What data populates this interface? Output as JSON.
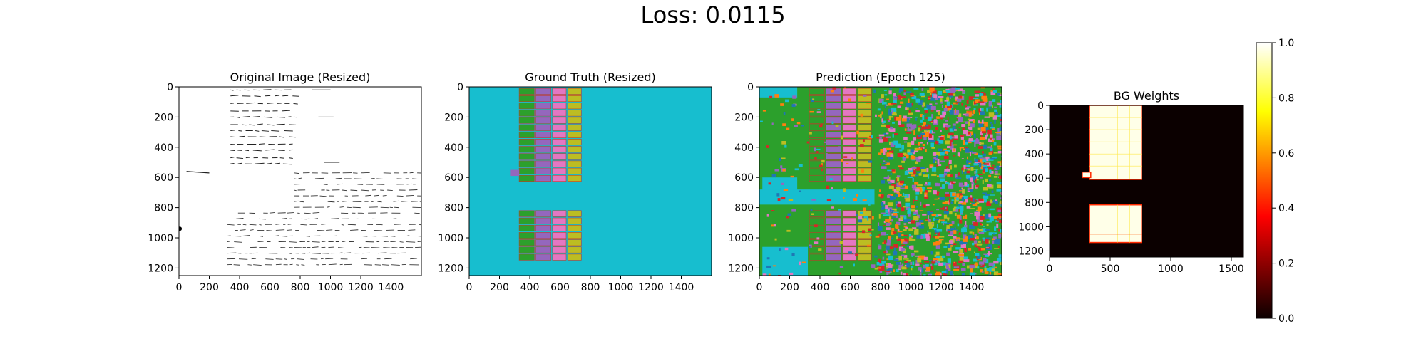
{
  "figure": {
    "suptitle": "Loss: 0.0115"
  },
  "chart_data": [
    {
      "type": "heatmap",
      "title": "Original Image (Resized)",
      "xticks": [
        0,
        200,
        400,
        600,
        800,
        1000,
        1200,
        1400
      ],
      "yticks": [
        0,
        200,
        400,
        600,
        800,
        1000,
        1200
      ],
      "xlim": [
        0,
        1600
      ],
      "ylim": [
        1250,
        0
      ],
      "content": "handwritten ledger page"
    },
    {
      "type": "heatmap",
      "title": "Ground Truth (Resized)",
      "xticks": [
        0,
        200,
        400,
        600,
        800,
        1000,
        1200,
        1400
      ],
      "yticks": [
        0,
        200,
        400,
        600,
        800,
        1000,
        1200
      ],
      "xlim": [
        0,
        1600
      ],
      "ylim": [
        1250,
        0
      ],
      "colors": {
        "background": "#17becf",
        "col1": "#2ca02c",
        "col2": "#9467bd",
        "col3": "#e377c2",
        "col4": "#bcbd22"
      }
    },
    {
      "type": "heatmap",
      "title": "Prediction (Epoch 125)",
      "xticks": [
        0,
        200,
        400,
        600,
        800,
        1000,
        1200,
        1400
      ],
      "yticks": [
        0,
        200,
        400,
        600,
        800,
        1000,
        1200
      ],
      "xlim": [
        0,
        1600
      ],
      "ylim": [
        1250,
        0
      ],
      "colors": {
        "background": "#2ca02c",
        "noise": [
          "#17becf",
          "#1f77b4",
          "#d62728",
          "#e377c2",
          "#9467bd",
          "#bcbd22",
          "#ff7f0e"
        ]
      }
    },
    {
      "type": "heatmap",
      "title": "BG Weights",
      "xticks": [
        0,
        500,
        1000,
        1500
      ],
      "yticks": [
        0,
        200,
        400,
        600,
        800,
        1000,
        1200
      ],
      "xlim": [
        0,
        1600
      ],
      "ylim": [
        1250,
        0
      ],
      "colormap": "hot",
      "colorbar": {
        "ticks": [
          "0.0",
          "0.2",
          "0.4",
          "0.6",
          "0.8",
          "1.0"
        ],
        "range": [
          0,
          1
        ]
      }
    }
  ]
}
